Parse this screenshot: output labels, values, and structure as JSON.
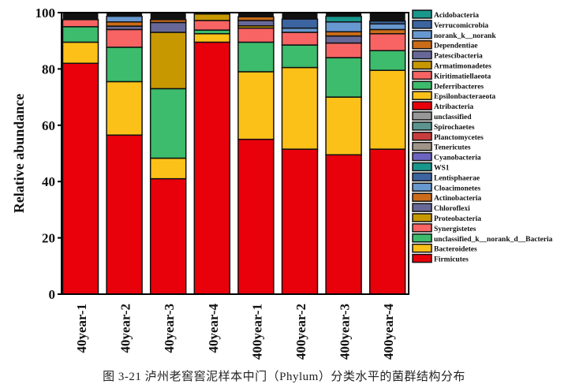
{
  "chart_data": {
    "type": "bar",
    "stacked": true,
    "ylabel": "Relative abundance",
    "xlabel": "",
    "ylim": [
      0,
      100
    ],
    "yticks": [
      0,
      20,
      40,
      60,
      80,
      100
    ],
    "grid": false,
    "legend_placement": "right",
    "categories": [
      "40year-1",
      "40year-2",
      "40year-3",
      "40year-4",
      "400year-1",
      "400year-2",
      "400year-3",
      "400year-4"
    ],
    "series": [
      {
        "name": "Firmicutes",
        "color": "#e8000b",
        "values": [
          82,
          56.5,
          41,
          89.5,
          55,
          51.5,
          49.5,
          51.5
        ]
      },
      {
        "name": "Bacteroidetes",
        "color": "#fcc118",
        "values": [
          7.5,
          19,
          7.3,
          3,
          24,
          29,
          20.5,
          28
        ]
      },
      {
        "name": "unclassified_k__norank_d__Bacteria",
        "color": "#3cbc6c",
        "values": [
          5.5,
          12.2,
          24.7,
          1.3,
          10.5,
          8,
          14,
          7
        ]
      },
      {
        "name": "Synergistetes",
        "color": "#f86464",
        "values": [
          2.5,
          6.3,
          0,
          3.4,
          5,
          4.5,
          5.2,
          6
        ]
      },
      {
        "name": "Proteobacteria",
        "color": "#c89800",
        "values": [
          0,
          0,
          20,
          2.3,
          0.8,
          0,
          0,
          0
        ]
      },
      {
        "name": "Chloroflexi",
        "color": "#686898",
        "values": [
          0,
          1.2,
          3.5,
          0,
          1.9,
          0,
          2.5,
          0
        ]
      },
      {
        "name": "Actinobacteria",
        "color": "#cc6c18",
        "values": [
          0,
          1.5,
          1,
          0,
          1.3,
          0,
          1.5,
          1.5
        ]
      },
      {
        "name": "Cloacimonetes",
        "color": "#6898d0",
        "values": [
          0,
          2,
          0,
          0,
          0,
          1.5,
          3.5,
          2
        ]
      },
      {
        "name": "Lentisphaerae",
        "color": "#3c64a0",
        "values": [
          0,
          0,
          0,
          0,
          0,
          3.2,
          0,
          1
        ]
      },
      {
        "name": "WS1",
        "color": "#18988c",
        "values": [
          0,
          0,
          0,
          0,
          0,
          0,
          2,
          0
        ]
      },
      {
        "name": "Cyanobacteria",
        "color": "#6c64c0",
        "values": [
          0,
          0,
          0,
          0,
          0,
          0,
          0,
          0
        ]
      },
      {
        "name": "Tenericutes",
        "color": "#a09488",
        "values": [
          0,
          0,
          0,
          0,
          0,
          0,
          0,
          0
        ]
      },
      {
        "name": "Planctomycetes",
        "color": "#c83c3c",
        "values": [
          0,
          0,
          0,
          0,
          0,
          0,
          0,
          0
        ]
      },
      {
        "name": "Spirochaetes",
        "color": "#5c9490",
        "values": [
          0,
          0,
          0,
          0,
          0,
          0,
          0,
          0
        ]
      },
      {
        "name": "unclassified",
        "color": "#989898",
        "values": [
          0,
          0,
          0,
          0,
          0,
          0,
          0,
          0
        ]
      },
      {
        "name": "Atribacteria",
        "color": "#e8000b",
        "values": [
          0,
          0,
          0,
          0,
          0,
          0,
          0,
          0
        ]
      },
      {
        "name": "Epsilonbacteraeota",
        "color": "#fcc118",
        "values": [
          0,
          0,
          0,
          0,
          0,
          0,
          0,
          0
        ]
      },
      {
        "name": "Deferribacteres",
        "color": "#3cbc6c",
        "values": [
          0,
          0,
          0,
          0,
          0,
          0,
          0,
          0
        ]
      },
      {
        "name": "Kiritimatiellaeota",
        "color": "#f86464",
        "values": [
          0,
          0,
          0,
          0,
          0,
          0,
          0,
          0
        ]
      },
      {
        "name": "Armatimonadetes",
        "color": "#c89800",
        "values": [
          0,
          0,
          0,
          0,
          0,
          0,
          0,
          0
        ]
      },
      {
        "name": "Patescibacteria",
        "color": "#686898",
        "values": [
          0,
          0,
          0,
          0,
          0,
          0,
          0,
          0
        ]
      },
      {
        "name": "Dependentiae",
        "color": "#cc6c18",
        "values": [
          0,
          0,
          0,
          0,
          0,
          0,
          0,
          0
        ]
      },
      {
        "name": "norank_k__norank",
        "color": "#6898d0",
        "values": [
          0,
          0,
          0,
          0,
          0,
          0,
          0,
          0
        ]
      },
      {
        "name": "Verrucomicrobia",
        "color": "#3c64a0",
        "values": [
          0,
          0,
          0,
          0,
          0,
          0,
          0,
          0
        ]
      },
      {
        "name": "Acidobacteria",
        "color": "#18988c",
        "values": [
          0,
          0,
          0,
          0,
          0,
          0,
          0,
          0
        ]
      }
    ],
    "legend_order": [
      "Acidobacteria",
      "Verrucomicrobia",
      "norank_k__norank",
      "Dependentiae",
      "Patescibacteria",
      "Armatimonadetes",
      "Kiritimatiellaeota",
      "Deferribacteres",
      "Epsilonbacteraeota",
      "Atribacteria",
      "unclassified",
      "Spirochaetes",
      "Planctomycetes",
      "Tenericutes",
      "Cyanobacteria",
      "WS1",
      "Lentisphaerae",
      "Cloacimonetes",
      "Actinobacteria",
      "Chloroflexi",
      "Proteobacteria",
      "Synergistetes",
      "unclassified_k__norank_d__Bacteria",
      "Bacteroidetes",
      "Firmicutes"
    ]
  },
  "caption": "图 3-21  泸州老窖窖泥样本中门（Phylum）分类水平的菌群结构分布"
}
